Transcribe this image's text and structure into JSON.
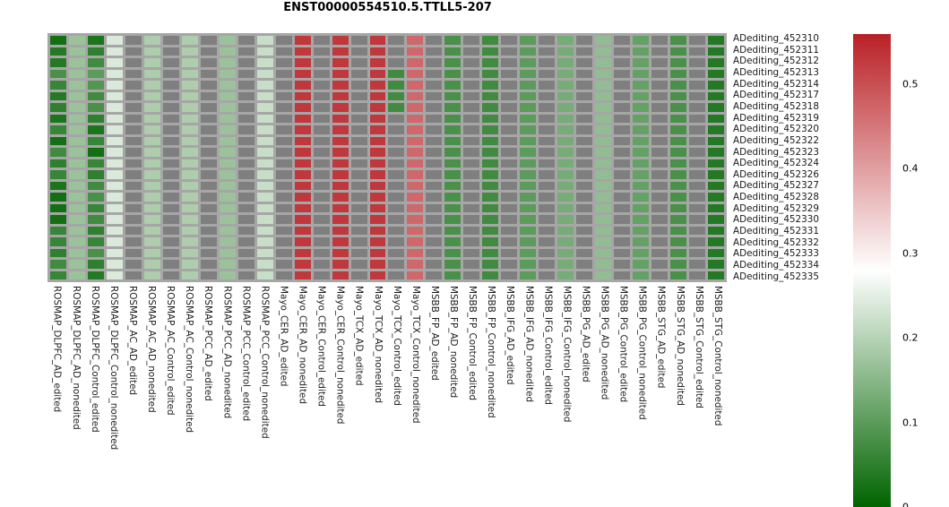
{
  "title": "ENST00000554510.5.TTLL5-207",
  "chart_data": {
    "type": "heatmap",
    "title": "ENST00000554510.5.TTLL5-207",
    "rows": [
      "ADediting_452310",
      "ADediting_452311",
      "ADediting_452312",
      "ADediting_452313",
      "ADediting_452314",
      "ADediting_452317",
      "ADediting_452318",
      "ADediting_452319",
      "ADediting_452320",
      "ADediting_452322",
      "ADediting_452323",
      "ADediting_452324",
      "ADediting_452326",
      "ADediting_452327",
      "ADediting_452328",
      "ADediting_452329",
      "ADediting_452330",
      "ADediting_452331",
      "ADediting_452332",
      "ADediting_452333",
      "ADediting_452334",
      "ADediting_452335"
    ],
    "columns": [
      "ROSMAP_DLPFC_AD_edited",
      "ROSMAP_DLPFC_AD_nonedited",
      "ROSMAP_DLPFC_Control_edited",
      "ROSMAP_DLPFC_Control_nonedited",
      "ROSMAP_AC_AD_edited",
      "ROSMAP_AC_AD_nonedited",
      "ROSMAP_AC_Control_edited",
      "ROSMAP_AC_Control_nonedited",
      "ROSMAP_PCC_AD_edited",
      "ROSMAP_PCC_AD_nonedited",
      "ROSMAP_PCC_Control_edited",
      "ROSMAP_PCC_Control_nonedited",
      "Mayo_CER_AD_edited",
      "Mayo_CER_AD_nonedited",
      "Mayo_CER_Control_edited",
      "Mayo_CER_Control_nonedited",
      "Mayo_TCX_AD_edited",
      "Mayo_TCX_AD_nonedited",
      "Mayo_TCX_Control_edited",
      "Mayo_TCX_Control_nonedited",
      "MSBB_FP_AD_edited",
      "MSBB_FP_AD_nonedited",
      "MSBB_FP_Control_edited",
      "MSBB_FP_Control_nonedited",
      "MSBB_IFG_AD_edited",
      "MSBB_IFG_AD_nonedited",
      "MSBB_IFG_Control_edited",
      "MSBB_IFG_Control_nonedited",
      "MSBB_PG_AD_edited",
      "MSBB_PG_AD_nonedited",
      "MSBB_PG_Control_edited",
      "MSBB_PG_Control_nonedited",
      "MSBB_STG_AD_edited",
      "MSBB_STG_AD_nonedited",
      "MSBB_STG_Control_edited",
      "MSBB_STG_Control_nonedited"
    ],
    "values": [
      [
        0.02,
        0.17,
        0.03,
        0.24,
        null,
        0.19,
        null,
        0.19,
        null,
        0.17,
        null,
        0.22,
        null,
        0.53,
        null,
        0.53,
        null,
        0.53,
        null,
        0.47,
        null,
        0.08,
        null,
        0.07,
        null,
        0.1,
        null,
        0.13,
        null,
        0.16,
        null,
        0.11,
        null,
        0.08,
        null,
        0.04
      ],
      [
        0.04,
        0.17,
        0.05,
        0.24,
        null,
        0.19,
        null,
        0.19,
        null,
        0.17,
        null,
        0.22,
        null,
        0.53,
        null,
        0.53,
        null,
        0.53,
        null,
        0.47,
        null,
        0.08,
        null,
        0.07,
        null,
        0.1,
        null,
        0.13,
        null,
        0.16,
        null,
        0.11,
        null,
        0.08,
        null,
        0.04
      ],
      [
        0.04,
        0.17,
        0.07,
        0.24,
        null,
        0.19,
        null,
        0.19,
        null,
        0.17,
        null,
        0.22,
        null,
        0.53,
        null,
        0.53,
        null,
        0.53,
        null,
        0.47,
        null,
        0.08,
        null,
        0.07,
        null,
        0.1,
        null,
        0.13,
        null,
        0.16,
        null,
        0.11,
        null,
        0.08,
        null,
        0.04
      ],
      [
        0.08,
        0.17,
        0.1,
        0.24,
        null,
        0.19,
        null,
        0.19,
        null,
        0.17,
        null,
        0.22,
        null,
        0.53,
        null,
        0.53,
        null,
        0.53,
        0.07,
        0.47,
        null,
        0.08,
        null,
        0.07,
        null,
        0.1,
        null,
        0.13,
        null,
        0.16,
        null,
        0.11,
        null,
        0.08,
        null,
        0.04
      ],
      [
        0.06,
        0.17,
        0.09,
        0.24,
        null,
        0.19,
        null,
        0.19,
        null,
        0.17,
        null,
        0.22,
        null,
        0.53,
        null,
        0.53,
        null,
        0.53,
        0.07,
        0.47,
        null,
        0.08,
        null,
        0.07,
        null,
        0.1,
        null,
        0.13,
        null,
        0.16,
        null,
        0.11,
        null,
        0.08,
        null,
        0.04
      ],
      [
        0.04,
        0.17,
        0.07,
        0.24,
        null,
        0.19,
        null,
        0.19,
        null,
        0.17,
        null,
        0.22,
        null,
        0.53,
        null,
        0.53,
        null,
        0.53,
        0.07,
        0.47,
        null,
        0.08,
        null,
        0.07,
        null,
        0.1,
        null,
        0.13,
        null,
        0.16,
        null,
        0.11,
        null,
        0.08,
        null,
        0.04
      ],
      [
        0.05,
        0.17,
        0.08,
        0.24,
        null,
        0.19,
        null,
        0.19,
        null,
        0.17,
        null,
        0.22,
        null,
        0.53,
        null,
        0.53,
        null,
        0.53,
        0.07,
        0.47,
        null,
        0.08,
        null,
        0.07,
        null,
        0.1,
        null,
        0.13,
        null,
        0.16,
        null,
        0.11,
        null,
        0.08,
        null,
        0.04
      ],
      [
        0.03,
        0.17,
        0.05,
        0.24,
        null,
        0.19,
        null,
        0.19,
        null,
        0.17,
        null,
        0.22,
        null,
        0.53,
        null,
        0.53,
        null,
        0.53,
        null,
        0.47,
        null,
        0.08,
        null,
        0.07,
        null,
        0.1,
        null,
        0.13,
        null,
        0.16,
        null,
        0.11,
        null,
        0.08,
        null,
        0.04
      ],
      [
        0.06,
        0.17,
        0.03,
        0.24,
        null,
        0.19,
        null,
        0.19,
        null,
        0.17,
        null,
        0.22,
        null,
        0.53,
        null,
        0.53,
        null,
        0.53,
        null,
        0.47,
        null,
        0.08,
        null,
        0.07,
        null,
        0.1,
        null,
        0.13,
        null,
        0.16,
        null,
        0.11,
        null,
        0.08,
        null,
        0.04
      ],
      [
        0.02,
        0.17,
        0.06,
        0.24,
        null,
        0.19,
        null,
        0.19,
        null,
        0.17,
        null,
        0.22,
        null,
        0.53,
        null,
        0.53,
        null,
        0.53,
        null,
        0.47,
        null,
        0.08,
        null,
        0.07,
        null,
        0.1,
        null,
        0.13,
        null,
        0.16,
        null,
        0.11,
        null,
        0.08,
        null,
        0.04
      ],
      [
        0.07,
        0.17,
        0.02,
        0.24,
        null,
        0.19,
        null,
        0.19,
        null,
        0.17,
        null,
        0.22,
        null,
        0.53,
        null,
        0.53,
        null,
        0.53,
        null,
        0.47,
        null,
        0.08,
        null,
        0.07,
        null,
        0.1,
        null,
        0.13,
        null,
        0.16,
        null,
        0.11,
        null,
        0.08,
        null,
        0.04
      ],
      [
        0.05,
        0.17,
        0.06,
        0.24,
        null,
        0.19,
        null,
        0.19,
        null,
        0.17,
        null,
        0.22,
        null,
        0.53,
        null,
        0.53,
        null,
        0.53,
        null,
        0.47,
        null,
        0.08,
        null,
        0.07,
        null,
        0.1,
        null,
        0.13,
        null,
        0.16,
        null,
        0.11,
        null,
        0.08,
        null,
        0.04
      ],
      [
        0.06,
        0.17,
        0.05,
        0.24,
        null,
        0.19,
        null,
        0.19,
        null,
        0.17,
        null,
        0.22,
        null,
        0.53,
        null,
        0.53,
        null,
        0.53,
        null,
        0.47,
        null,
        0.08,
        null,
        0.07,
        null,
        0.1,
        null,
        0.13,
        null,
        0.16,
        null,
        0.11,
        null,
        0.08,
        null,
        0.04
      ],
      [
        0.03,
        0.17,
        0.07,
        0.24,
        null,
        0.19,
        null,
        0.19,
        null,
        0.17,
        null,
        0.22,
        null,
        0.53,
        null,
        0.53,
        null,
        0.53,
        null,
        0.47,
        null,
        0.08,
        null,
        0.07,
        null,
        0.1,
        null,
        0.13,
        null,
        0.16,
        null,
        0.11,
        null,
        0.08,
        null,
        0.04
      ],
      [
        0.02,
        0.17,
        0.08,
        0.24,
        null,
        0.19,
        null,
        0.19,
        null,
        0.17,
        null,
        0.22,
        null,
        0.53,
        null,
        0.53,
        null,
        0.53,
        null,
        0.47,
        null,
        0.08,
        null,
        0.07,
        null,
        0.1,
        null,
        0.13,
        null,
        0.16,
        null,
        0.11,
        null,
        0.08,
        null,
        0.04
      ],
      [
        0.02,
        0.17,
        0.06,
        0.24,
        null,
        0.19,
        null,
        0.19,
        null,
        0.17,
        null,
        0.22,
        null,
        0.53,
        null,
        0.53,
        null,
        0.53,
        null,
        0.47,
        null,
        0.08,
        null,
        0.07,
        null,
        0.1,
        null,
        0.13,
        null,
        0.16,
        null,
        0.11,
        null,
        0.08,
        null,
        0.04
      ],
      [
        0.02,
        0.17,
        0.07,
        0.24,
        null,
        0.19,
        null,
        0.19,
        null,
        0.17,
        null,
        0.22,
        null,
        0.53,
        null,
        0.53,
        null,
        0.53,
        null,
        0.47,
        null,
        0.08,
        null,
        0.07,
        null,
        0.1,
        null,
        0.13,
        null,
        0.16,
        null,
        0.11,
        null,
        0.08,
        null,
        0.04
      ],
      [
        0.06,
        0.17,
        0.05,
        0.24,
        null,
        0.19,
        null,
        0.19,
        null,
        0.17,
        null,
        0.22,
        null,
        0.53,
        null,
        0.53,
        null,
        0.53,
        null,
        0.47,
        null,
        0.08,
        null,
        0.07,
        null,
        0.1,
        null,
        0.13,
        null,
        0.16,
        null,
        0.11,
        null,
        0.08,
        null,
        0.04
      ],
      [
        0.06,
        0.17,
        0.06,
        0.24,
        null,
        0.19,
        null,
        0.19,
        null,
        0.17,
        null,
        0.22,
        null,
        0.53,
        null,
        0.53,
        null,
        0.53,
        null,
        0.47,
        null,
        0.08,
        null,
        0.07,
        null,
        0.1,
        null,
        0.13,
        null,
        0.16,
        null,
        0.11,
        null,
        0.08,
        null,
        0.04
      ],
      [
        0.05,
        0.17,
        0.08,
        0.24,
        null,
        0.19,
        null,
        0.19,
        null,
        0.17,
        null,
        0.22,
        null,
        0.53,
        null,
        0.53,
        null,
        0.53,
        null,
        0.47,
        null,
        0.08,
        null,
        0.07,
        null,
        0.1,
        null,
        0.13,
        null,
        0.16,
        null,
        0.11,
        null,
        0.08,
        null,
        0.04
      ],
      [
        0.07,
        0.17,
        0.05,
        0.24,
        null,
        0.19,
        null,
        0.19,
        null,
        0.17,
        null,
        0.22,
        null,
        0.53,
        null,
        0.53,
        null,
        0.53,
        null,
        0.47,
        null,
        0.08,
        null,
        0.07,
        null,
        0.1,
        null,
        0.13,
        null,
        0.16,
        null,
        0.11,
        null,
        0.08,
        null,
        0.04
      ],
      [
        0.06,
        0.17,
        0.04,
        0.24,
        null,
        0.19,
        null,
        0.19,
        null,
        0.17,
        null,
        0.22,
        null,
        0.53,
        null,
        0.53,
        null,
        0.53,
        null,
        0.47,
        null,
        0.08,
        null,
        0.07,
        null,
        0.1,
        null,
        0.13,
        null,
        0.16,
        null,
        0.11,
        null,
        0.08,
        null,
        0.04
      ]
    ],
    "na_color": "#7f7f7f",
    "grid_background": "#a6a6a6",
    "colormap": {
      "low_color": "#006400",
      "mid_color": "#ffffff",
      "high_color": "#b92025",
      "vmin": 0,
      "vmid": 0.28,
      "vmax": 0.559
    },
    "colorbar": {
      "ticks": [
        0.5,
        0.4,
        0.3,
        0.2,
        0.1,
        0
      ],
      "tick_labels": [
        "0.5",
        "0.4",
        "0.3",
        "0.2",
        "0.1",
        "0"
      ]
    },
    "legend_position": "right"
  }
}
